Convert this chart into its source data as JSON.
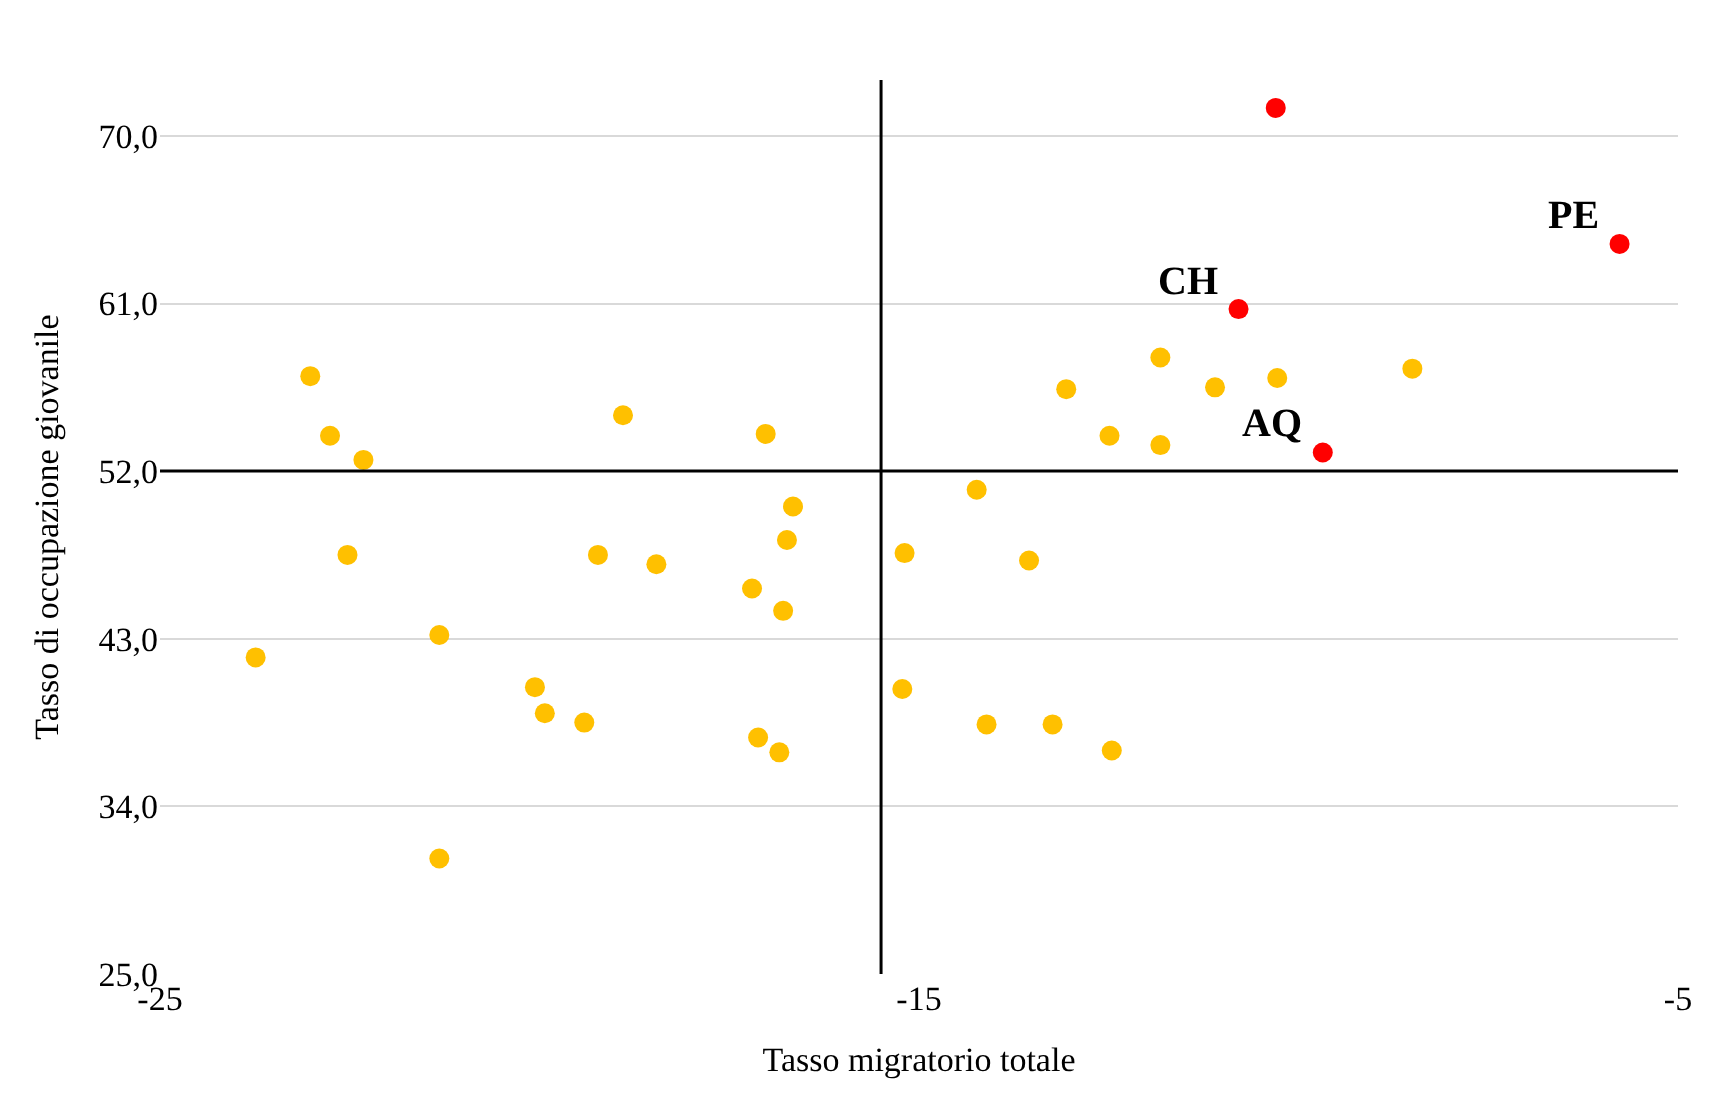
{
  "chart_data": {
    "type": "scatter",
    "xlabel": "Tasso migratorio totale",
    "ylabel": "Tasso di occupazione giovanile",
    "series": [
      {
        "color": "#ffc000",
        "x": [
          -23.02,
          -22.76,
          -22.32,
          -22.53,
          -23.74,
          -21.32,
          -21.32,
          -20.06,
          -19.93,
          -19.41,
          -19.23,
          -18.9,
          -18.46,
          -17.2,
          -17.02,
          -16.66,
          -16.74,
          -16.79,
          -17.12,
          -16.84,
          -15.19,
          -15.22,
          -14.24,
          -14.11,
          -13.55,
          -13.24,
          -13.06,
          -12.49,
          -12.46,
          -11.82,
          -11.82,
          -11.1,
          -10.28,
          -8.5
        ],
        "values": [
          57.1,
          53.9,
          52.6,
          47.5,
          42.0,
          43.2,
          31.2,
          40.4,
          39.0,
          38.5,
          47.5,
          55.0,
          47.0,
          45.7,
          54.0,
          50.1,
          48.3,
          44.5,
          37.7,
          36.9,
          47.6,
          40.3,
          51.0,
          38.4,
          47.2,
          38.4,
          56.4,
          53.9,
          37.0,
          58.1,
          53.4,
          56.5,
          57.0,
          57.5
        ]
      },
      {
        "color": "#ff0000",
        "x": [
          -10.3,
          -10.79,
          -9.68,
          -5.77
        ],
        "values": [
          71.5,
          60.7,
          53.0,
          64.2
        ]
      }
    ],
    "annotations": [
      {
        "text": "CH",
        "x": -10.79,
        "y": 60.7
      },
      {
        "text": "AQ",
        "x": -9.68,
        "y": 53.0
      },
      {
        "text": "PE",
        "x": -5.77,
        "y": 64.2
      }
    ],
    "xlim": [
      -25,
      -5
    ],
    "xticks": [
      -25,
      -15,
      -5
    ],
    "ylim": [
      25,
      73
    ],
    "yticks": [
      {
        "value": 25,
        "label": "25,0"
      },
      {
        "value": 34,
        "label": "34,0"
      },
      {
        "value": 43,
        "label": "43,0"
      },
      {
        "value": 52,
        "label": "52,0"
      },
      {
        "value": 61,
        "label": "61,0"
      },
      {
        "value": 70,
        "label": "70,0"
      }
    ],
    "ref_lines": [
      {
        "axis": "x",
        "value": -15.5,
        "label": null,
        "color": "#000000"
      },
      {
        "axis": "y",
        "value": 52,
        "label": null,
        "color": "#000000"
      }
    ],
    "grid": "y",
    "marker": "circle"
  }
}
